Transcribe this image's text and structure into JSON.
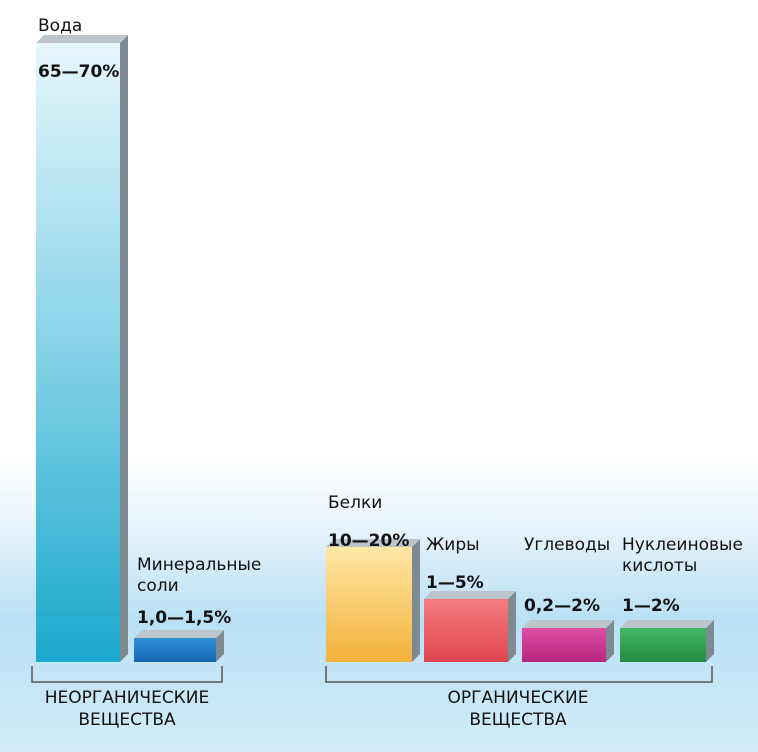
{
  "chart_data": {
    "type": "bar",
    "groups": [
      {
        "label_lines": [
          "НЕОРГАНИЧЕСКИЕ",
          "ВЕЩЕСТВА"
        ]
      },
      {
        "label_lines": [
          "ОРГАНИЧЕСКИЕ",
          "ВЕЩЕСТВА"
        ]
      }
    ],
    "bars": [
      {
        "name_lines": [
          "Вода"
        ],
        "value_label": "65—70%",
        "value": 67.5,
        "color": "#3fb8d8"
      },
      {
        "name_lines": [
          "Минеральные",
          "соли"
        ],
        "value_label": "1,0—1,5%",
        "value": 1.25,
        "color": "#1f7fc4"
      },
      {
        "name_lines": [
          "Белки"
        ],
        "value_label": "10—20%",
        "value": 15,
        "color": "#f3b948"
      },
      {
        "name_lines": [
          "Жиры"
        ],
        "value_label": "1—5%",
        "value": 3,
        "color": "#e85d66"
      },
      {
        "name_lines": [
          "Углеводы"
        ],
        "value_label": "0,2—2%",
        "value": 1.1,
        "color": "#c8348c"
      },
      {
        "name_lines": [
          "Нуклеиновые",
          "кислоты"
        ],
        "value_label": "1—2%",
        "value": 1.5,
        "color": "#2ea050"
      }
    ]
  }
}
